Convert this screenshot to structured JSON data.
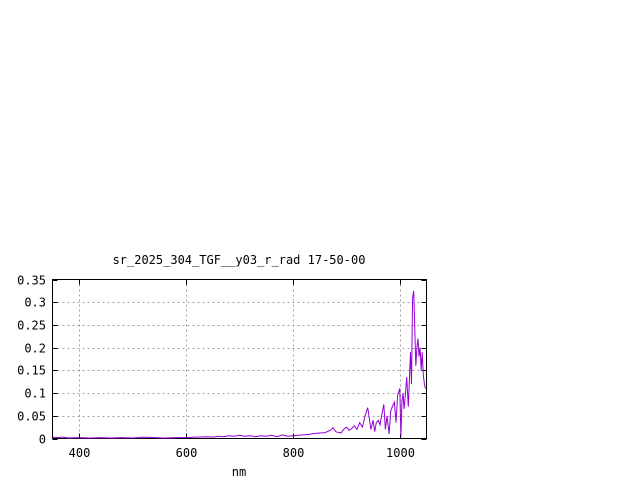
{
  "chart_data": {
    "type": "line",
    "title": "sr_2025_304_TGF__y03_r_rad 17-50-00",
    "xlabel": "nm",
    "ylabel": "",
    "xlim": [
      350,
      1050
    ],
    "ylim": [
      0,
      0.35
    ],
    "xticks": [
      400,
      600,
      800,
      1000
    ],
    "xtick_labels": [
      "400",
      "600",
      "800",
      "1000"
    ],
    "yticks": [
      0,
      0.05,
      0.1,
      0.15,
      0.2,
      0.25,
      0.3,
      0.35
    ],
    "ytick_labels": [
      "0",
      "0.05",
      "0.1",
      "0.15",
      "0.2",
      "0.25",
      "0.3",
      "0.35"
    ],
    "grid": true,
    "legend": "none",
    "series_color": "#9400d3",
    "series": [
      {
        "x": [
          350,
          360,
          370,
          380,
          400,
          420,
          440,
          460,
          480,
          500,
          520,
          540,
          560,
          580,
          600,
          620,
          640,
          650,
          660,
          670,
          680,
          690,
          700,
          710,
          720,
          730,
          740,
          750,
          760,
          770,
          780,
          790,
          800,
          810,
          820,
          830,
          840,
          850,
          860,
          870,
          875,
          880,
          890,
          895,
          900,
          905,
          910,
          915,
          920,
          925,
          930,
          935,
          940,
          943,
          946,
          950,
          953,
          956,
          960,
          963,
          966,
          970,
          973,
          976,
          980,
          983,
          986,
          990,
          993,
          996,
          1000,
          1002,
          1004,
          1006,
          1008,
          1010,
          1013,
          1016,
          1018,
          1020,
          1022,
          1024,
          1026,
          1028,
          1030,
          1032,
          1034,
          1036,
          1038,
          1040,
          1042,
          1044,
          1046,
          1048
        ],
        "y": [
          0.003,
          0.002,
          0.003,
          0.001,
          0.002,
          0.001,
          0.002,
          0.001,
          0.002,
          0.001,
          0.003,
          0.002,
          0.001,
          0.002,
          0.002,
          0.003,
          0.004,
          0.003,
          0.005,
          0.004,
          0.006,
          0.005,
          0.007,
          0.005,
          0.006,
          0.004,
          0.006,
          0.005,
          0.007,
          0.004,
          0.008,
          0.005,
          0.006,
          0.007,
          0.008,
          0.009,
          0.011,
          0.012,
          0.013,
          0.018,
          0.024,
          0.015,
          0.012,
          0.02,
          0.025,
          0.018,
          0.022,
          0.028,
          0.02,
          0.035,
          0.025,
          0.05,
          0.068,
          0.045,
          0.02,
          0.04,
          0.015,
          0.035,
          0.04,
          0.03,
          0.05,
          0.075,
          0.02,
          0.05,
          0.01,
          0.06,
          0.07,
          0.08,
          0.035,
          0.095,
          0.11,
          0.005,
          0.08,
          0.1,
          0.065,
          0.09,
          0.135,
          0.07,
          0.13,
          0.19,
          0.12,
          0.31,
          0.325,
          0.25,
          0.16,
          0.2,
          0.22,
          0.18,
          0.2,
          0.15,
          0.19,
          0.14,
          0.12,
          0.11
        ]
      }
    ]
  }
}
